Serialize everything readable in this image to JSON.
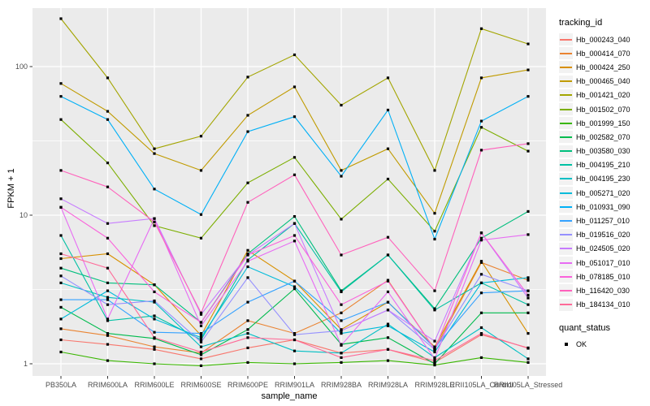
{
  "axes": {
    "x_title": "sample_name",
    "y_title": "FPKM + 1",
    "y_tick_labels": [
      "100",
      "10",
      "1"
    ]
  },
  "legend": {
    "tracking_title": "tracking_id",
    "quant_title": "quant_status",
    "quant_items": [
      "OK"
    ]
  },
  "style": {
    "panel_fill": "#EBEBEB",
    "grid_color": "#FFFFFF",
    "tick_color": "#333333",
    "tick_label_color": "#4D4D4D",
    "point_color": "#000000",
    "legend_key_fill": "#F2F2F2"
  },
  "chart_data": {
    "type": "line",
    "title": "",
    "xlabel": "sample_name",
    "ylabel": "FPKM + 1",
    "y_scale": "log10",
    "y_ticks": [
      1,
      10,
      100
    ],
    "y_minor_ticks": [
      3.162,
      31.62
    ],
    "ylim": [
      0.83,
      250
    ],
    "grid": true,
    "legend_position": "right",
    "point_marker": "black-square",
    "categories": [
      "PB350LA",
      "RRIM600LA",
      "RRIM600LE",
      "RRIM600SE",
      "RRIM600PE",
      "RRIM901LA",
      "RRIM928BA",
      "RRIM928LA",
      "RRIM928LE",
      "RRII105LA_Control",
      "RRII105LA_Stressed"
    ],
    "series": [
      {
        "name": "Hb_000243_040",
        "color": "#F8766D",
        "values": [
          1.45,
          1.35,
          1.25,
          1.08,
          1.28,
          1.45,
          1.18,
          1.25,
          1.02,
          1.57,
          1.28
        ]
      },
      {
        "name": "Hb_000414_070",
        "color": "#EA8331",
        "values": [
          1.72,
          1.55,
          1.3,
          1.18,
          1.95,
          1.6,
          2.2,
          3.65,
          1.25,
          4.8,
          3.65
        ]
      },
      {
        "name": "Hb_000424_250",
        "color": "#D89000",
        "values": [
          5.1,
          5.5,
          3.4,
          1.55,
          5.8,
          3.6,
          1.7,
          2.6,
          1.3,
          4.9,
          1.6
        ]
      },
      {
        "name": "Hb_000465_040",
        "color": "#C09B00",
        "values": [
          77,
          50,
          26,
          20,
          47,
          73,
          20,
          28,
          10.3,
          84,
          95
        ]
      },
      {
        "name": "Hb_001421_020",
        "color": "#A3A500",
        "values": [
          210,
          84,
          28,
          34,
          85,
          120,
          55,
          84,
          20,
          180,
          142
        ]
      },
      {
        "name": "Hb_001502_070",
        "color": "#7CAE00",
        "values": [
          44,
          22.5,
          8.5,
          7,
          16.5,
          24.5,
          9.4,
          17.5,
          7.8,
          39,
          27
        ]
      },
      {
        "name": "Hb_001999_150",
        "color": "#39B600",
        "values": [
          1.2,
          1.05,
          1,
          0.97,
          1.02,
          1,
          1.02,
          1.05,
          0.98,
          1.1,
          1.02
        ]
      },
      {
        "name": "Hb_002582_070",
        "color": "#00BB4E",
        "values": [
          2.4,
          1.6,
          1.48,
          1.15,
          1.7,
          3.2,
          1.35,
          1.5,
          1,
          2.2,
          2.2
        ]
      },
      {
        "name": "Hb_003580_030",
        "color": "#00BF7D",
        "values": [
          4.4,
          3.5,
          3.4,
          1.9,
          5.5,
          9.8,
          3.1,
          5.4,
          2.35,
          7,
          10.6
        ]
      },
      {
        "name": "Hb_004195_210",
        "color": "#00C1A3",
        "values": [
          7.3,
          1.95,
          2.1,
          1.45,
          5,
          8.8,
          3.05,
          5.4,
          2.3,
          3.5,
          2.5
        ]
      },
      {
        "name": "Hb_004195_230",
        "color": "#00BFC4",
        "values": [
          3.5,
          2.8,
          2.6,
          1.3,
          1.6,
          1.22,
          1.18,
          1.85,
          1.1,
          1.75,
          1.08
        ]
      },
      {
        "name": "Hb_005271_020",
        "color": "#00BBDA",
        "values": [
          2,
          3.1,
          2,
          1.5,
          4.5,
          3.3,
          1.6,
          1.8,
          1.2,
          3.5,
          3.8
        ]
      },
      {
        "name": "Hb_010931_090",
        "color": "#00B0F6",
        "values": [
          63,
          44,
          15,
          10.1,
          36.5,
          46,
          18.3,
          51,
          6.9,
          43,
          63
        ]
      },
      {
        "name": "Hb_011257_010",
        "color": "#35A2FF",
        "values": [
          2.7,
          2.7,
          1.63,
          1.6,
          2.6,
          3.6,
          1.95,
          2.6,
          1.28,
          3,
          3.1
        ]
      },
      {
        "name": "Hb_019516_020",
        "color": "#9590FF",
        "values": [
          3.9,
          2.5,
          2.65,
          1.4,
          3.8,
          1.57,
          1.67,
          2.3,
          1.25,
          4,
          3.1
        ]
      },
      {
        "name": "Hb_024505_020",
        "color": "#C77CFF",
        "values": [
          12.9,
          8.8,
          9.5,
          2.15,
          5.4,
          8.8,
          1.67,
          2.3,
          1.42,
          7.6,
          2.77
        ]
      },
      {
        "name": "Hb_051017_010",
        "color": "#E76BF3",
        "values": [
          11.3,
          2,
          9.5,
          1.8,
          4.9,
          6.7,
          1.33,
          3.05,
          1.08,
          6.8,
          7.4
        ]
      },
      {
        "name": "Hb_078185_010",
        "color": "#FA62DB",
        "values": [
          11.3,
          7,
          3.05,
          1.9,
          5.4,
          7.3,
          2.5,
          3.6,
          1.25,
          7.6,
          2.9
        ]
      },
      {
        "name": "Hb_116420_030",
        "color": "#FF62BC",
        "values": [
          20,
          15.5,
          9,
          2.2,
          12.2,
          18.7,
          5.4,
          7.1,
          3.1,
          27.4,
          30.3
        ]
      },
      {
        "name": "Hb_184134_010",
        "color": "#FF6A98",
        "values": [
          5.5,
          4.4,
          1.5,
          1.2,
          1.5,
          1.45,
          1.1,
          1.25,
          1.05,
          1.6,
          1.27
        ]
      }
    ],
    "quant_status": {
      "title": "quant_status",
      "items": [
        "OK"
      ]
    }
  }
}
